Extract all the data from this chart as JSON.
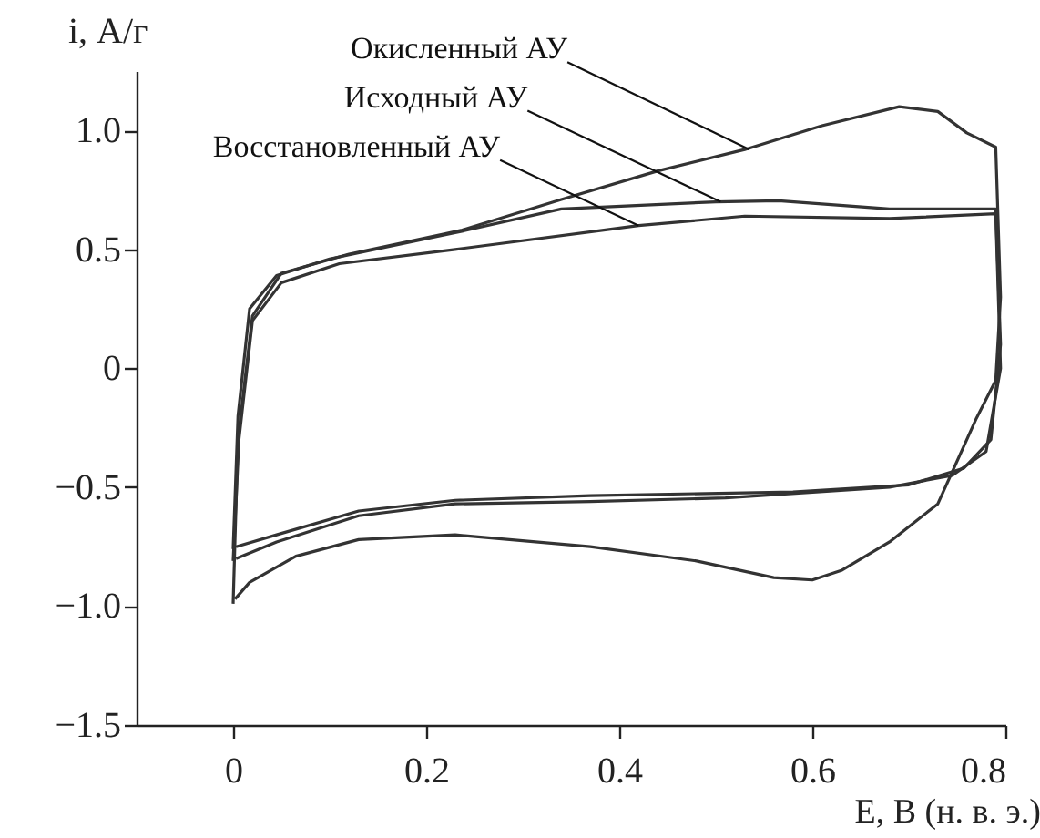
{
  "chart_data": {
    "type": "line",
    "xlabel": "E, В (н. в. э.)",
    "ylabel": "i, А/г",
    "xlim": [
      -0.1,
      0.8
    ],
    "ylim": [
      -1.5,
      1.25
    ],
    "xticks": [
      0,
      0.2,
      0.4,
      0.6,
      0.8
    ],
    "yticks": [
      {
        "value": 1,
        "label": "1.0"
      },
      0.5,
      0,
      {
        "value": -0.5,
        "label": "−0.5"
      },
      {
        "value": -1,
        "label": "−1.0"
      },
      {
        "value": -1.5,
        "label": "−1.5"
      }
    ],
    "grid": false,
    "legend": false,
    "marker": "none",
    "line_style": "solid",
    "series": [
      {
        "color": "#333333",
        "x": [
          0,
          0.005,
          0.02,
          0.05,
          0.12,
          0.236,
          0.34,
          0.44,
          0.53,
          0.61,
          0.69,
          0.73,
          0.76,
          0.79,
          0.795,
          0.79,
          0.77,
          0.73,
          0.68,
          0.63,
          0.6,
          0.56,
          0.48,
          0.37,
          0.23,
          0.13,
          0.065,
          0.017,
          0.002
        ],
        "values": [
          -0.99,
          -0.3,
          0.22,
          0.4,
          0.48,
          0.58,
          0.71,
          0.83,
          0.92,
          1.02,
          1.1,
          1.08,
          0.99,
          0.93,
          0.3,
          -0.05,
          -0.21,
          -0.57,
          -0.73,
          -0.85,
          -0.89,
          -0.88,
          -0.81,
          -0.75,
          -0.7,
          -0.72,
          -0.79,
          -0.9,
          -0.97
        ]
      },
      {
        "color": "#333333",
        "x": [
          0,
          0.005,
          0.017,
          0.045,
          0.1,
          0.23,
          0.34,
          0.5,
          0.565,
          0.68,
          0.79,
          0.795,
          0.785,
          0.757,
          0.7,
          0.58,
          0.37,
          0.23,
          0.13,
          0.045,
          0.003
        ],
        "values": [
          -0.76,
          -0.2,
          0.25,
          0.39,
          0.46,
          0.57,
          0.67,
          0.7,
          0.705,
          0.67,
          0.67,
          0.1,
          -0.3,
          -0.42,
          -0.49,
          -0.52,
          -0.535,
          -0.555,
          -0.6,
          -0.7,
          -0.75
        ]
      },
      {
        "color": "#333333",
        "x": [
          0,
          0.006,
          0.02,
          0.05,
          0.11,
          0.23,
          0.42,
          0.53,
          0.68,
          0.79,
          0.795,
          0.78,
          0.745,
          0.68,
          0.51,
          0.37,
          0.23,
          0.13,
          0.045,
          0.003
        ],
        "values": [
          -0.81,
          -0.3,
          0.2,
          0.36,
          0.44,
          0.5,
          0.6,
          0.64,
          0.63,
          0.65,
          0.0,
          -0.35,
          -0.45,
          -0.5,
          -0.545,
          -0.56,
          -0.57,
          -0.62,
          -0.73,
          -0.8
        ]
      }
    ],
    "annotations": [
      {
        "text": "Окисленный АУ",
        "x": 0.535,
        "y": 0.92
      },
      {
        "text": "Исходный АУ",
        "x": 0.505,
        "y": 0.7
      },
      {
        "text": "Восстановленный АУ",
        "x": 0.42,
        "y": 0.6
      }
    ]
  }
}
